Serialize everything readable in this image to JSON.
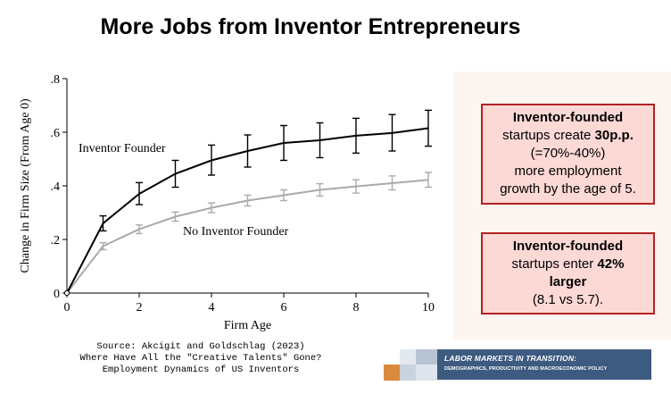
{
  "slide": {
    "title": "More Jobs from Inventor Entrepreneurs"
  },
  "chart_data": {
    "type": "line",
    "ylabel": "Change in Firm Size (From Age 0)",
    "xlabel": "Firm Age",
    "xlim": [
      0,
      10
    ],
    "ylim": [
      0,
      0.8
    ],
    "x_ticks": [
      0,
      2,
      4,
      6,
      8,
      10
    ],
    "y_ticks": [
      0,
      0.2,
      0.4,
      0.6,
      0.8
    ],
    "y_tick_labels": [
      "0",
      ".2",
      ".4",
      ".6",
      ".8"
    ],
    "x": [
      0,
      1,
      2,
      3,
      4,
      5,
      6,
      7,
      8,
      9,
      10
    ],
    "series": [
      {
        "name": "Inventor Founder",
        "color": "#000000",
        "values": [
          0,
          0.26,
          0.37,
          0.445,
          0.495,
          0.53,
          0.56,
          0.57,
          0.587,
          0.597,
          0.615
        ],
        "ci_low": [
          0,
          0.232,
          0.33,
          0.395,
          0.44,
          0.47,
          0.495,
          0.505,
          0.522,
          0.53,
          0.548
        ],
        "ci_high": [
          0,
          0.288,
          0.412,
          0.495,
          0.552,
          0.59,
          0.625,
          0.635,
          0.652,
          0.666,
          0.682
        ]
      },
      {
        "name": "No Inventor Founder",
        "color": "#aaaaaa",
        "values": [
          0,
          0.175,
          0.238,
          0.285,
          0.318,
          0.345,
          0.365,
          0.385,
          0.398,
          0.41,
          0.422
        ],
        "ci_low": [
          0,
          0.162,
          0.222,
          0.268,
          0.3,
          0.325,
          0.345,
          0.362,
          0.373,
          0.385,
          0.395
        ],
        "ci_high": [
          0,
          0.188,
          0.254,
          0.302,
          0.336,
          0.365,
          0.385,
          0.408,
          0.423,
          0.437,
          0.45
        ]
      }
    ]
  },
  "callouts": {
    "box1": {
      "l1": "Inventor-founded",
      "l2_pre": "startups create ",
      "l2_strong": "30p.p.",
      "l3": "(=70%-40%)",
      "l4": "more employment",
      "l5": "growth by the age of 5."
    },
    "box2": {
      "l1": "Inventor-founded",
      "l2_pre": "startups enter ",
      "l2_strong": "42%",
      "l3": "larger",
      "l4": "(8.1 vs 5.7)."
    }
  },
  "source": {
    "line1": "Source: Akcigit and Goldschlag (2023)",
    "line2": "Where Have All the \"Creative Talents\" Gone?",
    "line3": "Employment Dynamics of US Inventors"
  },
  "banner": {
    "main": "LABOR MARKETS IN TRANSITION:",
    "sub": "DEMOGRAPHICS, PRODUCTIVITY AND MACROECONOMIC POLICY"
  }
}
